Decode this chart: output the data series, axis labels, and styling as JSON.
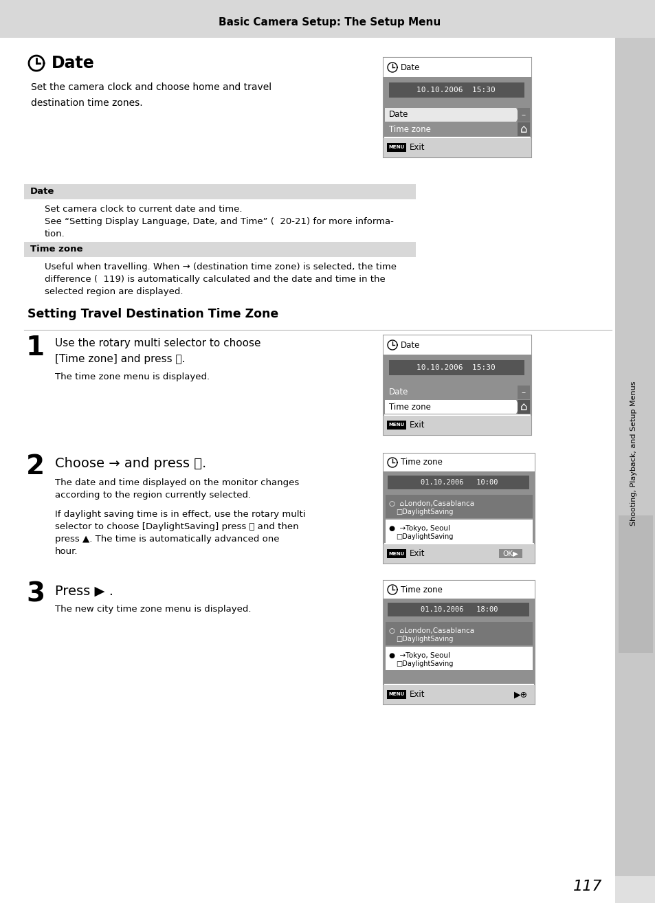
{
  "header_text": "Basic Camera Setup: The Setup Menu",
  "page_num": "117",
  "sidebar_text": "Shooting, Playback, and Setup Menus",
  "title_date": "Date",
  "intro": "Set the camera clock and choose home and travel\ndestination time zones.",
  "date_label": "Date",
  "date_text1": "Set camera clock to current date and time.",
  "date_text2": "See “Setting Display Language, Date, and Time” (  20-21) for more informa-",
  "date_text3": "tion.",
  "tz_label": "Time zone",
  "tz_text1": "Useful when travelling. When → (destination time zone) is selected, the time",
  "tz_text2": "difference (  119) is automatically calculated and the date and time in the",
  "tz_text3": "selected region are displayed.",
  "setting_title": "Setting Travel Destination Time Zone",
  "s1_num": "1",
  "s1_title": "Use the rotary multi selector to choose\n[Time zone] and press ⒪.",
  "s1_sub": "The time zone menu is displayed.",
  "s2_num": "2",
  "s2_title": "Choose → and press ⒪.",
  "s2_sub1": "The date and time displayed on the monitor changes",
  "s2_sub2": "according to the region currently selected.",
  "s2_sub3": "If daylight saving time is in effect, use the rotary multi",
  "s2_sub4": "selector to choose [DaylightSaving] press ⒪ and then",
  "s2_sub5": "press ▲. The time is automatically advanced one",
  "s2_sub6": "hour.",
  "s3_num": "3",
  "s3_title": "Press ▶ .",
  "s3_sub": "The new city time zone menu is displayed.",
  "screen1_date": "10.10.2006  15:30",
  "screen2_date": "10.10.2006  15:30",
  "screen3_date": "01.10.2006   10:00",
  "screen4_date": "01.10.2006   18:00"
}
